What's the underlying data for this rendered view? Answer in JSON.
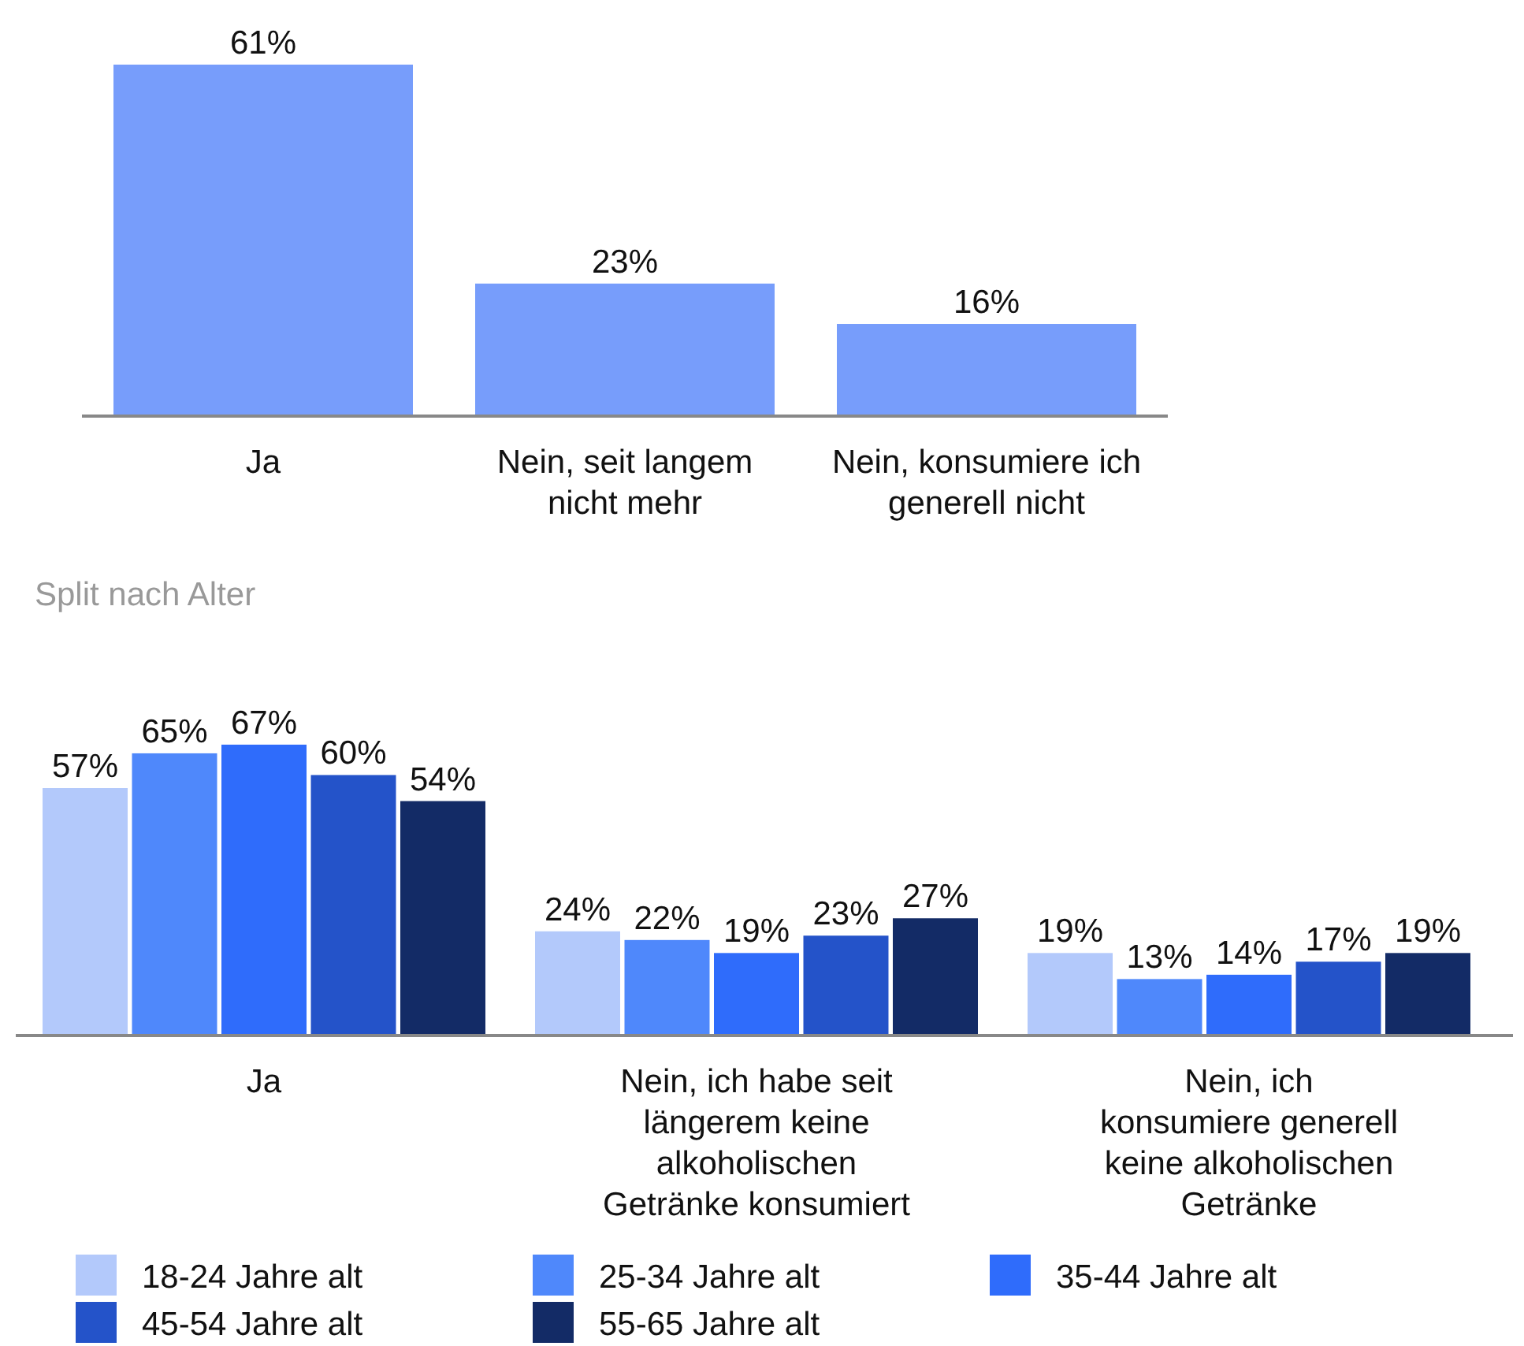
{
  "chart_data": [
    {
      "type": "bar",
      "categories": [
        "Ja",
        "Nein, seit langem nicht mehr",
        "Nein, konsumiere ich generell nicht"
      ],
      "values": [
        61,
        23,
        16
      ],
      "color": "#779dfb",
      "data_labels": true,
      "value_labels": [
        "61%",
        "23%",
        "16%"
      ]
    },
    {
      "type": "bar",
      "title": "Split nach Alter",
      "categories": [
        "Ja",
        "Nein, ich habe seit längerem keine alkoholischen Getränke konsumiert",
        "Nein, ich konsumiere generell keine alkoholischen Getränke"
      ],
      "data_labels": true,
      "legend": "bottom",
      "series": [
        {
          "name": "18-24 Jahre alt",
          "color": "#b3c9fb",
          "values": [
            57,
            24,
            19
          ],
          "value_labels": [
            "57%",
            "24%",
            "19%"
          ]
        },
        {
          "name": "25-34 Jahre alt",
          "color": "#4f88fb",
          "values": [
            65,
            22,
            13
          ],
          "value_labels": [
            "65%",
            "22%",
            "13%"
          ]
        },
        {
          "name": "35-44 Jahre alt",
          "color": "#2f6cfb",
          "values": [
            67,
            19,
            14
          ],
          "value_labels": [
            "67%",
            "19%",
            "14%"
          ]
        },
        {
          "name": "45-54 Jahre alt",
          "color": "#2453c9",
          "values": [
            60,
            23,
            17
          ],
          "value_labels": [
            "60%",
            "23%",
            "17%"
          ]
        },
        {
          "name": "55-65 Jahre alt",
          "color": "#132b66",
          "values": [
            54,
            27,
            19
          ],
          "value_labels": [
            "54%",
            "27%",
            "19%"
          ]
        }
      ]
    }
  ]
}
